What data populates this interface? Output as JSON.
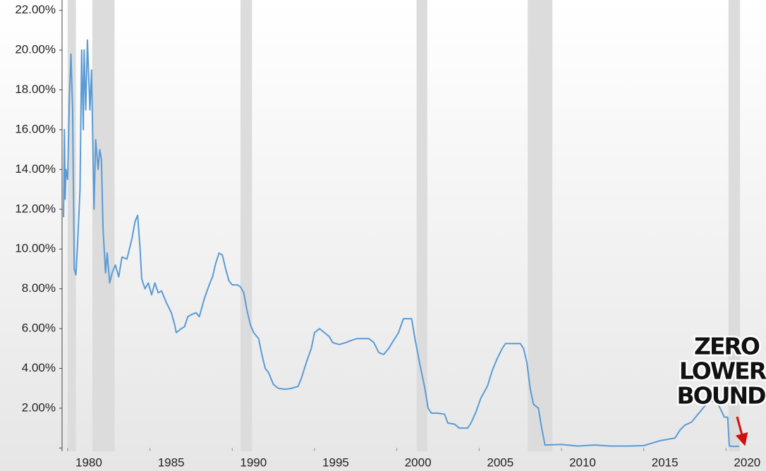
{
  "chart_data": {
    "type": "line",
    "x": [
      1979.75,
      1979.8,
      1979.85,
      1979.9,
      1980.0,
      1980.1,
      1980.2,
      1980.3,
      1980.4,
      1980.5,
      1980.6,
      1980.75,
      1980.85,
      1980.95,
      1981.0,
      1981.1,
      1981.2,
      1981.35,
      1981.45,
      1981.6,
      1981.7,
      1981.85,
      1981.95,
      1982.05,
      1982.15,
      1982.3,
      1982.4,
      1982.55,
      1982.7,
      1982.9,
      1983.1,
      1983.3,
      1983.6,
      1983.9,
      1984.1,
      1984.25,
      1984.4,
      1984.5,
      1984.7,
      1984.9,
      1985.1,
      1985.3,
      1985.5,
      1985.7,
      1986.0,
      1986.3,
      1986.5,
      1986.6,
      1986.9,
      1987.1,
      1987.3,
      1987.5,
      1987.8,
      1988.0,
      1988.3,
      1988.6,
      1988.8,
      1989.0,
      1989.2,
      1989.4,
      1989.6,
      1989.8,
      1990.0,
      1990.3,
      1990.5,
      1990.7,
      1990.9,
      1991.1,
      1991.3,
      1991.6,
      1991.8,
      1992.0,
      1992.2,
      1992.5,
      1992.8,
      1993.2,
      1993.6,
      1994.0,
      1994.2,
      1994.5,
      1994.8,
      1995.0,
      1995.3,
      1995.6,
      1995.9,
      1996.1,
      1996.5,
      1996.9,
      1997.2,
      1997.6,
      1998.0,
      1998.3,
      1998.6,
      1998.9,
      1999.2,
      1999.5,
      1999.8,
      2000.1,
      2000.4,
      2000.7,
      2000.9,
      2001.1,
      2001.4,
      2001.7,
      2001.9,
      2002.1,
      2002.5,
      2002.9,
      2003.1,
      2003.5,
      2003.8,
      2004.3,
      2004.5,
      2004.8,
      2005.1,
      2005.5,
      2005.8,
      2006.1,
      2006.4,
      2006.6,
      2007.0,
      2007.5,
      2007.7,
      2007.9,
      2008.1,
      2008.3,
      2008.6,
      2008.8,
      2009.0,
      2010.0,
      2011.0,
      2012.0,
      2013.0,
      2014.0,
      2015.0,
      2016.0,
      2016.9,
      2017.2,
      2017.5,
      2017.9,
      2018.2,
      2018.5,
      2018.9,
      2019.4,
      2019.7,
      2019.9,
      2020.1,
      2020.2,
      2020.5,
      2020.8
    ],
    "series": [
      {
        "color": "#5b9bd5",
        "values": [
          11.6,
          16,
          12.5,
          14,
          13.5,
          17.5,
          19.8,
          17,
          9,
          8.7,
          10.2,
          13,
          20,
          16,
          20,
          17,
          20.5,
          17,
          19,
          12,
          15.5,
          14,
          15,
          14.5,
          11,
          8.8,
          9.8,
          8.3,
          8.8,
          9.2,
          8.6,
          9.6,
          9.5,
          10.5,
          11.4,
          11.7,
          10,
          8.5,
          8.0,
          8.3,
          7.7,
          8.3,
          7.8,
          7.9,
          7.3,
          6.8,
          6.2,
          5.8,
          6.0,
          6.1,
          6.6,
          6.7,
          6.8,
          6.6,
          7.5,
          8.2,
          8.6,
          9.3,
          9.8,
          9.7,
          9.0,
          8.4,
          8.2,
          8.2,
          8.1,
          7.8,
          6.9,
          6.2,
          5.8,
          5.5,
          4.7,
          4.0,
          3.8,
          3.2,
          3.0,
          2.95,
          3.0,
          3.1,
          3.5,
          4.3,
          5.0,
          5.8,
          6.0,
          5.8,
          5.6,
          5.3,
          5.2,
          5.3,
          5.4,
          5.5,
          5.5,
          5.5,
          5.3,
          4.8,
          4.7,
          5.0,
          5.4,
          5.8,
          6.5,
          6.5,
          6.5,
          5.5,
          4.2,
          3.0,
          2.0,
          1.75,
          1.75,
          1.7,
          1.25,
          1.2,
          1.0,
          1.0,
          1.25,
          1.8,
          2.5,
          3.1,
          3.9,
          4.5,
          5.0,
          5.25,
          5.25,
          5.25,
          5.0,
          4.3,
          3.0,
          2.2,
          2.0,
          1.0,
          0.15,
          0.18,
          0.1,
          0.15,
          0.1,
          0.1,
          0.12,
          0.37,
          0.5,
          0.9,
          1.15,
          1.3,
          1.6,
          1.9,
          2.3,
          2.4,
          1.9,
          1.55,
          1.55,
          0.1,
          0.08,
          0.09
        ]
      }
    ],
    "recessions": [
      [
        1980.0,
        1980.5
      ],
      [
        1981.5,
        1982.85
      ],
      [
        1990.5,
        1991.2
      ],
      [
        2001.2,
        2001.85
      ],
      [
        2007.95,
        2009.45
      ],
      [
        2020.15,
        2020.85
      ]
    ],
    "recession_color": "#dcdcdc",
    "xlim": [
      1979.66,
      2021.4
    ],
    "xticks": [
      1980,
      1985,
      1990,
      1995,
      2000,
      2005,
      2010,
      2015,
      2020
    ],
    "ylim": [
      0,
      22
    ],
    "yticks": [
      {
        "value": 0,
        "label": ""
      },
      {
        "value": 2,
        "label": "2.00%"
      },
      {
        "value": 4,
        "label": "4.00%"
      },
      {
        "value": 6,
        "label": "6.00%"
      },
      {
        "value": 8,
        "label": "8.00%"
      },
      {
        "value": 10,
        "label": "10.00%"
      },
      {
        "value": 12,
        "label": "12.00%"
      },
      {
        "value": 14,
        "label": "14.00%"
      },
      {
        "value": 16,
        "label": "16.00%"
      },
      {
        "value": 18,
        "label": "18.00%"
      },
      {
        "value": 20,
        "label": "20.00%"
      },
      {
        "value": 22,
        "label": "22.00%"
      }
    ],
    "annotation": [
      "ZERO",
      "LOWER",
      "BOUND"
    ]
  }
}
